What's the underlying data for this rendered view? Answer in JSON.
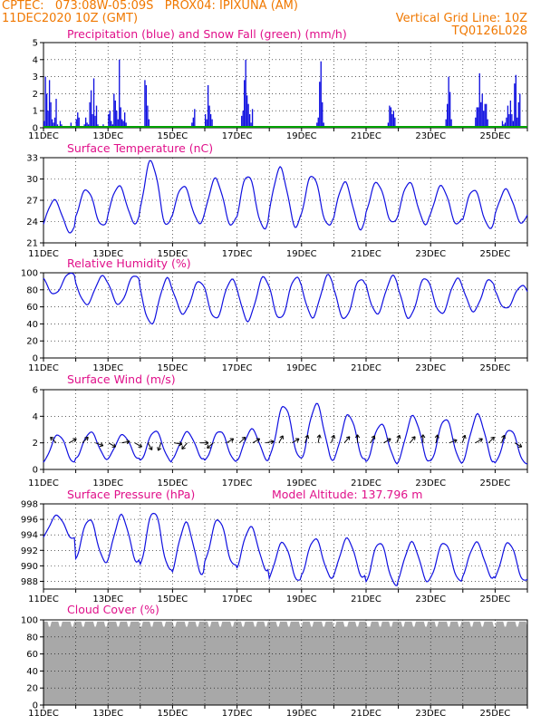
{
  "header": {
    "line1": "CPTEC:   073:08W-05:09S   PROX04: IPIXUNA (AM)",
    "line2_left": "11DEC2020 10Z (GMT)",
    "line2_right": "Vertical Grid Line: 10Z",
    "line3_right": "TQ0126L028"
  },
  "colors": {
    "title": "#e0108a",
    "header": "#f07800",
    "series": "#1010e0",
    "snow": "#00a000",
    "cloud": "#a8a8a8"
  },
  "x_axis": {
    "ticks": [
      "11DEC",
      "13DEC",
      "15DEC",
      "17DEC",
      "19DEC",
      "21DEC",
      "23DEC",
      "25DEC"
    ],
    "days": 15,
    "tick_every_days": 2
  },
  "chart_data": [
    {
      "type": "bar",
      "title": "Precipitation (blue) and Snow Fall (green) (mm/h)",
      "ylim": [
        0,
        5
      ],
      "yticks": [
        0,
        1,
        2,
        3,
        4,
        5
      ],
      "grid": true,
      "note": "hourly precipitation bars with snow fall line at 0",
      "values_by_day": [
        [
          0.4,
          3.0,
          2.0,
          1.0,
          2.8,
          1.5,
          0.5,
          0.3,
          0.6,
          1.7,
          0.2,
          0,
          0.4,
          0.2,
          0,
          0,
          0,
          0,
          0,
          0,
          0.3,
          0.1,
          0,
          0
        ],
        [
          0.5,
          0.9,
          0.6,
          0.1,
          0,
          0,
          0.2,
          0.6,
          0.3,
          0.2,
          1.5,
          2.2,
          0.8,
          2.9,
          0.7,
          1.3,
          0.2,
          0.1,
          0,
          0,
          0.2,
          0.1,
          0,
          0
        ],
        [
          0.8,
          1.0,
          0.4,
          0.2,
          2.0,
          1.6,
          1.0,
          0.5,
          4.0,
          1.2,
          0.5,
          0.4,
          0.9,
          0.3,
          0.1,
          0,
          0,
          0,
          0,
          0,
          0,
          0,
          0,
          0
        ],
        [
          0,
          0,
          0,
          2.8,
          2.5,
          1.3,
          0.5,
          0,
          0,
          0,
          0,
          0,
          0,
          0,
          0,
          0,
          0,
          0,
          0,
          0,
          0,
          0,
          0,
          0
        ],
        [
          0,
          0,
          0,
          0,
          0,
          0,
          0,
          0,
          0,
          0,
          0,
          0,
          0,
          0,
          0.3,
          0.6,
          1.1,
          0,
          0,
          0,
          0,
          0,
          0,
          0
        ],
        [
          0.8,
          0.5,
          2.5,
          1.3,
          0.8,
          0.5,
          0,
          0,
          0,
          0,
          0,
          0,
          0,
          0,
          0,
          0,
          0,
          0,
          0,
          0,
          0,
          0,
          0,
          0
        ],
        [
          0,
          0,
          0,
          0.7,
          1.0,
          2.8,
          4.0,
          1.9,
          1.4,
          0.8,
          0.3,
          1.1,
          0,
          0,
          0,
          0,
          0,
          0,
          0,
          0,
          0,
          0,
          0,
          0
        ],
        [
          0,
          0,
          0,
          0,
          0,
          0,
          0,
          0,
          0,
          0,
          0,
          0,
          0,
          0,
          0,
          0,
          0,
          0,
          0,
          0,
          0,
          0,
          0,
          0
        ],
        [
          0,
          0,
          0,
          0,
          0,
          0,
          0,
          0,
          0,
          0,
          0,
          0.3,
          0.6,
          2.7,
          3.9,
          1.5,
          0.3,
          0,
          0,
          0,
          0,
          0,
          0,
          0
        ],
        [
          0,
          0,
          0,
          0,
          0,
          0,
          0,
          0,
          0,
          0,
          0,
          0,
          0,
          0,
          0,
          0,
          0,
          0,
          0,
          0,
          0,
          0,
          0,
          0
        ],
        [
          0,
          0,
          0,
          0,
          0,
          0,
          0,
          0,
          0,
          0,
          0,
          0,
          0,
          0,
          0,
          0,
          0.3,
          1.3,
          1.2,
          0.8,
          1.0,
          0.6,
          0,
          0
        ],
        [
          0,
          0,
          0,
          0,
          0,
          0,
          0,
          0,
          0,
          0,
          0,
          0,
          0,
          0,
          0,
          0,
          0,
          0,
          0,
          0,
          0,
          0,
          0,
          0
        ],
        [
          0,
          0,
          0,
          0,
          0,
          0,
          0,
          0,
          0,
          0,
          0,
          0.5,
          1.4,
          3.0,
          2.1,
          0.5,
          0,
          0,
          0,
          0,
          0,
          0,
          0,
          0
        ],
        [
          0,
          0,
          0,
          0,
          0,
          0,
          0,
          0,
          0,
          0.6,
          1.2,
          1.2,
          3.2,
          1.5,
          2.0,
          1.0,
          1.4,
          1.4,
          0.5,
          0,
          0,
          0,
          0,
          0
        ],
        [
          0,
          0,
          0,
          0,
          0,
          0.4,
          0.2,
          0.3,
          0.6,
          1.3,
          0.8,
          1.6,
          0.8,
          0.4,
          2.6,
          3.1,
          0.6,
          1.5,
          2.0,
          0,
          0,
          0,
          0,
          0
        ]
      ],
      "snow_fall": 0
    },
    {
      "type": "line",
      "title": "Surface Temperature (nC)",
      "ylim": [
        21,
        33
      ],
      "yticks": [
        21,
        24,
        27,
        30,
        33
      ],
      "grid": true,
      "daily_min": [
        22.5,
        23.4,
        23.8,
        23.4,
        23.8,
        23.5,
        23.0,
        23.3,
        23.4,
        23.0,
        23.8,
        23.7,
        23.6,
        23.1,
        23.8
      ],
      "daily_max": [
        27.0,
        28.5,
        29.0,
        32.5,
        29.0,
        30.0,
        30.5,
        31.5,
        30.5,
        29.5,
        29.5,
        29.5,
        29.0,
        28.5,
        28.5
      ]
    },
    {
      "type": "line",
      "title": "Relative Humidity (%)",
      "ylim": [
        0,
        100
      ],
      "yticks": [
        0,
        20,
        40,
        60,
        80,
        100
      ],
      "grid": true,
      "daily_min": [
        75,
        63,
        63,
        40,
        52,
        46,
        44,
        46,
        48,
        46,
        52,
        47,
        52,
        55,
        58
      ],
      "daily_max": [
        100,
        96,
        97,
        93,
        90,
        92,
        95,
        95,
        97,
        93,
        96,
        94,
        93,
        92,
        85
      ]
    },
    {
      "type": "line",
      "title": "Surface Wind (m/s)",
      "ylim": [
        0,
        6
      ],
      "yticks": [
        0,
        2,
        4,
        6
      ],
      "grid": true,
      "daily_min": [
        0.5,
        0.8,
        0.8,
        0.6,
        0.8,
        0.6,
        0.7,
        0.8,
        0.8,
        0.7,
        0.5,
        0.6,
        0.5,
        0.6,
        0.4
      ],
      "daily_max": [
        2.6,
        2.8,
        2.6,
        2.9,
        2.8,
        2.9,
        3.0,
        4.8,
        4.9,
        4.1,
        3.4,
        4.0,
        3.8,
        4.1,
        3.0
      ],
      "arrow_directions_deg": [
        315,
        60,
        45,
        110,
        120,
        80,
        120,
        150,
        200,
        100,
        220,
        90,
        230,
        60,
        45,
        60,
        80,
        30,
        60,
        20,
        10,
        20,
        40,
        0,
        30,
        60,
        20,
        40,
        0,
        10,
        70,
        20,
        60,
        45,
        20,
        120
      ]
    },
    {
      "type": "line",
      "title": "Surface Pressure (hPa)",
      "annotation": "Model Altitude: 137.796  m",
      "ylim": [
        987,
        998
      ],
      "yticks": [
        988,
        990,
        992,
        994,
        996,
        998
      ],
      "grid": true,
      "daily_min": [
        993.5,
        990.5,
        990.5,
        989.5,
        989.0,
        990.0,
        989.5,
        988.0,
        988.5,
        988.5,
        987.5,
        988.0,
        988.0,
        988.5,
        988.0
      ],
      "daily_max": [
        996.5,
        996.0,
        996.5,
        997.0,
        995.5,
        996.0,
        995.0,
        993.0,
        993.5,
        993.5,
        993.0,
        993.0,
        993.0,
        993.0,
        993.0
      ]
    },
    {
      "type": "area",
      "title": "Cloud Cover (%)",
      "ylim": [
        0,
        100
      ],
      "yticks": [
        0,
        20,
        40,
        60,
        80,
        100
      ],
      "grid": true,
      "typical_value": 98
    }
  ]
}
